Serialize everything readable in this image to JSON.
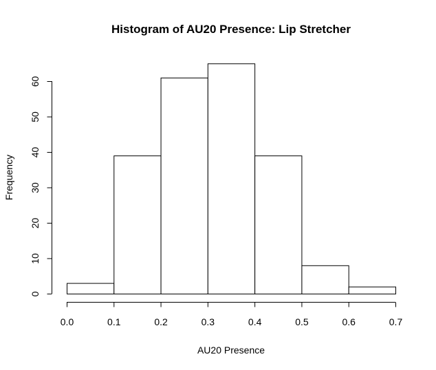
{
  "chart_data": {
    "type": "bar",
    "title": "Histogram of AU20 Presence: Lip Stretcher",
    "xlabel": "AU20 Presence",
    "ylabel": "Frequency",
    "bins": [
      {
        "start": 0.0,
        "end": 0.1,
        "count": 3
      },
      {
        "start": 0.1,
        "end": 0.2,
        "count": 39
      },
      {
        "start": 0.2,
        "end": 0.3,
        "count": 61
      },
      {
        "start": 0.3,
        "end": 0.4,
        "count": 65
      },
      {
        "start": 0.4,
        "end": 0.5,
        "count": 39
      },
      {
        "start": 0.5,
        "end": 0.6,
        "count": 8
      },
      {
        "start": 0.6,
        "end": 0.7,
        "count": 2
      }
    ],
    "xlim": [
      0.0,
      0.7
    ],
    "ylim": [
      0,
      65
    ],
    "x_ticks": [
      "0.0",
      "0.1",
      "0.2",
      "0.3",
      "0.4",
      "0.5",
      "0.6",
      "0.7"
    ],
    "y_ticks": [
      "0",
      "10",
      "20",
      "30",
      "40",
      "50",
      "60"
    ],
    "grid": false,
    "bar_fill": "#ffffff",
    "bar_stroke": "#000000"
  }
}
